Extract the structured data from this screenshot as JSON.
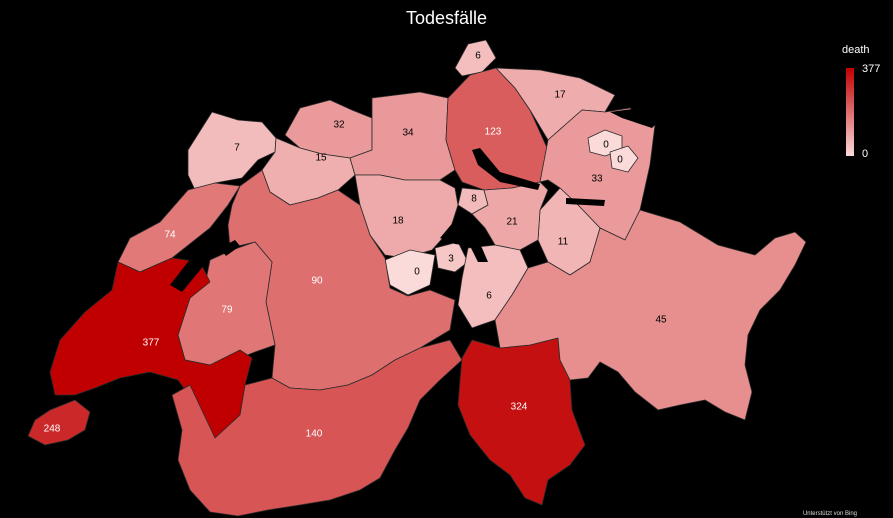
{
  "title": "Todesfälle",
  "legend": {
    "title": "death",
    "max_label": "377",
    "min_label": "0",
    "max": 377,
    "min": 0,
    "color_max": "#c00000",
    "color_min": "#fbdada"
  },
  "attribution": "Unterstützt von Bing",
  "values": {
    "schaffhausen": "6",
    "thurgau": "17",
    "zurich": "123",
    "basel_land": "32",
    "jura": "7",
    "aargau": "34",
    "solothurn": "15",
    "appenzell_ar": "0",
    "appenzell_ir": "0",
    "st_gallen": "33",
    "zug": "8",
    "luzern": "18",
    "schwyz": "21",
    "glarus": "11",
    "neuchatel": "74",
    "bern": "90",
    "obwalden": "0",
    "nidwalden": "3",
    "uri": "6",
    "graubunden": "45",
    "fribourg": "79",
    "vaud": "377",
    "geneva": "248",
    "ticino": "324",
    "valais": "140"
  }
}
